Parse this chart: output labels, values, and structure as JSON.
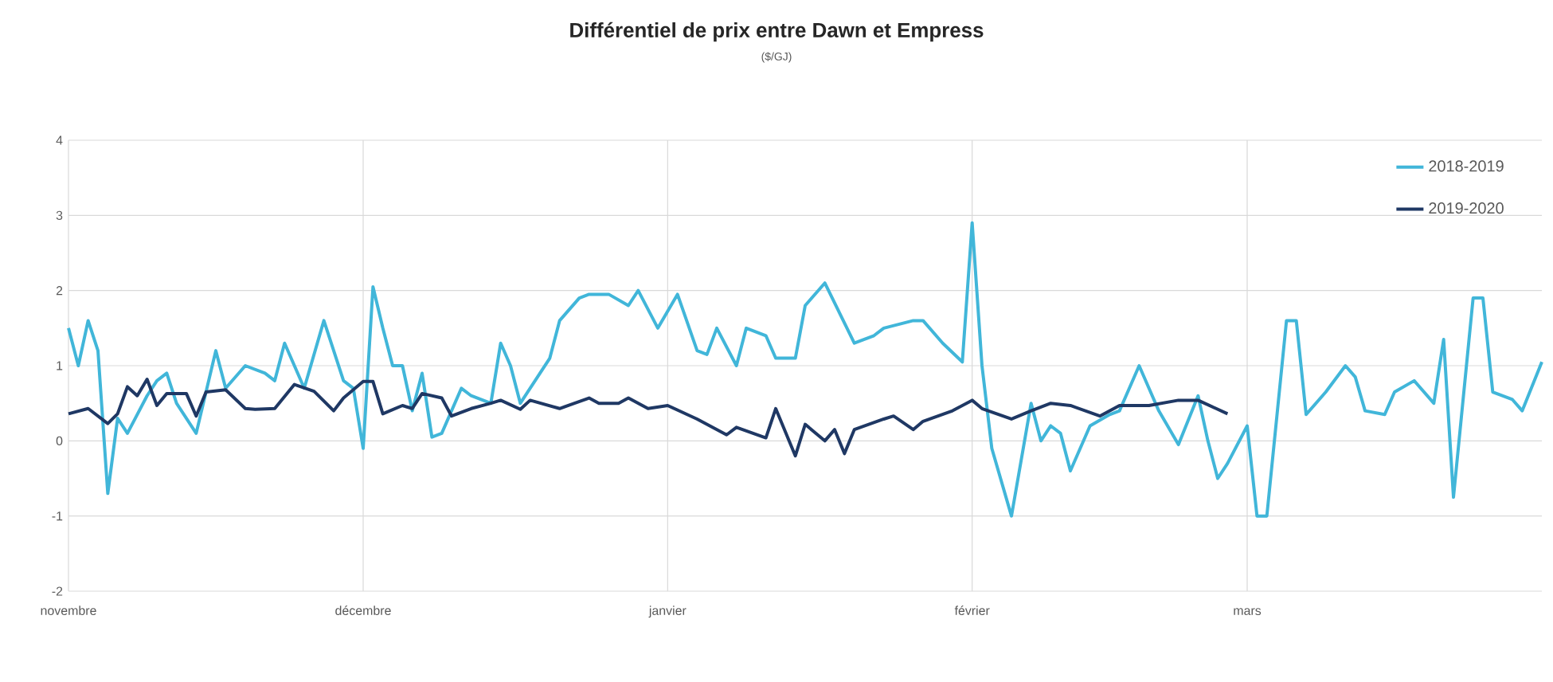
{
  "chart_data": {
    "type": "line",
    "title": "Différentiel de prix entre Dawn et Empress",
    "subtitle": "($/GJ)",
    "xlim": [
      "2018-11-01",
      "2019-03-31"
    ],
    "ylim": [
      -2,
      4
    ],
    "xticks": [
      {
        "value": "2018-11-01",
        "label": "novembre"
      },
      {
        "value": "2018-12-01",
        "label": "décembre"
      },
      {
        "value": "2019-01-01",
        "label": "janvier"
      },
      {
        "value": "2019-02-01",
        "label": "février"
      },
      {
        "value": "2019-03-01",
        "label": "mars"
      }
    ],
    "yticks": [
      -2,
      -1,
      0,
      1,
      2,
      3,
      4
    ],
    "grid": true,
    "legend": "top right",
    "marker": "none",
    "line_style": "solid",
    "series": [
      {
        "name": "2018-2019",
        "color": "#41b6d9",
        "x": [
          "2018-11-01",
          "2018-11-02",
          "2018-11-03",
          "2018-11-04",
          "2018-11-05",
          "2018-11-06",
          "2018-11-07",
          "2018-11-09",
          "2018-11-10",
          "2018-11-11",
          "2018-11-12",
          "2018-11-14",
          "2018-11-16",
          "2018-11-17",
          "2018-11-19",
          "2018-11-21",
          "2018-11-22",
          "2018-11-23",
          "2018-11-25",
          "2018-11-27",
          "2018-11-29",
          "2018-11-30",
          "2018-12-01",
          "2018-12-02",
          "2018-12-03",
          "2018-12-04",
          "2018-12-05",
          "2018-12-06",
          "2018-12-07",
          "2018-12-08",
          "2018-12-09",
          "2018-12-11",
          "2018-12-12",
          "2018-12-14",
          "2018-12-15",
          "2018-12-16",
          "2018-12-17",
          "2018-12-20",
          "2018-12-21",
          "2018-12-23",
          "2018-12-24",
          "2018-12-26",
          "2018-12-28",
          "2018-12-29",
          "2018-12-31",
          "2019-01-02",
          "2019-01-04",
          "2019-01-05",
          "2019-01-06",
          "2019-01-08",
          "2019-01-09",
          "2019-01-11",
          "2019-01-12",
          "2019-01-14",
          "2019-01-15",
          "2019-01-17",
          "2019-01-20",
          "2019-01-22",
          "2019-01-23",
          "2019-01-26",
          "2019-01-27",
          "2019-01-29",
          "2019-01-31",
          "2019-02-01",
          "2019-02-02",
          "2019-02-03",
          "2019-02-05",
          "2019-02-07",
          "2019-02-08",
          "2019-02-09",
          "2019-02-10",
          "2019-02-11",
          "2019-02-13",
          "2019-02-15",
          "2019-02-16",
          "2019-02-18",
          "2019-02-20",
          "2019-02-22",
          "2019-02-24",
          "2019-02-25",
          "2019-02-26",
          "2019-02-27",
          "2019-03-01",
          "2019-03-02",
          "2019-03-03",
          "2019-03-05",
          "2019-03-06",
          "2019-03-07",
          "2019-03-09",
          "2019-03-11",
          "2019-03-12",
          "2019-03-13",
          "2019-03-15",
          "2019-03-16",
          "2019-03-18",
          "2019-03-20",
          "2019-03-21",
          "2019-03-22",
          "2019-03-24",
          "2019-03-25",
          "2019-03-26",
          "2019-03-28",
          "2019-03-29",
          "2019-03-31"
        ],
        "values": [
          1.5,
          1.0,
          1.6,
          1.2,
          -0.7,
          0.3,
          0.1,
          0.6,
          0.8,
          0.9,
          0.5,
          0.1,
          1.2,
          0.7,
          1.0,
          0.9,
          0.8,
          1.3,
          0.7,
          1.6,
          0.8,
          0.7,
          -0.1,
          2.05,
          1.5,
          1.0,
          1.0,
          0.4,
          0.9,
          0.05,
          0.1,
          0.7,
          0.6,
          0.5,
          1.3,
          1.0,
          0.5,
          1.1,
          1.6,
          1.9,
          1.95,
          1.95,
          1.8,
          2.0,
          1.5,
          1.95,
          1.2,
          1.15,
          1.5,
          1.0,
          1.5,
          1.4,
          1.1,
          1.1,
          1.8,
          2.1,
          1.3,
          1.4,
          1.5,
          1.6,
          1.6,
          1.3,
          1.05,
          2.9,
          1.0,
          -0.1,
          -1.0,
          0.5,
          0.0,
          0.2,
          0.1,
          -0.4,
          0.2,
          0.35,
          0.4,
          1.0,
          0.4,
          -0.05,
          0.6,
          0.0,
          -0.5,
          -0.3,
          0.2,
          -1.0,
          -1.0,
          1.6,
          1.6,
          0.35,
          0.65,
          1.0,
          0.85,
          0.4,
          0.35,
          0.65,
          0.8,
          0.5,
          1.35,
          -0.75,
          1.9,
          1.9,
          0.65,
          0.55,
          0.4,
          1.05
        ]
      },
      {
        "name": "2019-2020",
        "color": "#1f3864",
        "x": [
          "2018-11-01",
          "2018-11-03",
          "2018-11-05",
          "2018-11-06",
          "2018-11-07",
          "2018-11-08",
          "2018-11-09",
          "2018-11-10",
          "2018-11-11",
          "2018-11-13",
          "2018-11-14",
          "2018-11-15",
          "2018-11-17",
          "2018-11-19",
          "2018-11-20",
          "2018-11-22",
          "2018-11-24",
          "2018-11-26",
          "2018-11-28",
          "2018-11-29",
          "2018-12-01",
          "2018-12-02",
          "2018-12-03",
          "2018-12-05",
          "2018-12-06",
          "2018-12-07",
          "2018-12-09",
          "2018-12-10",
          "2018-12-12",
          "2018-12-14",
          "2018-12-15",
          "2018-12-17",
          "2018-12-18",
          "2018-12-21",
          "2018-12-24",
          "2018-12-25",
          "2018-12-27",
          "2018-12-28",
          "2018-12-30",
          "2019-01-01",
          "2019-01-04",
          "2019-01-07",
          "2019-01-08",
          "2019-01-11",
          "2019-01-12",
          "2019-01-14",
          "2019-01-15",
          "2019-01-17",
          "2019-01-18",
          "2019-01-19",
          "2019-01-20",
          "2019-01-23",
          "2019-01-24",
          "2019-01-26",
          "2019-01-27",
          "2019-01-30",
          "2019-02-01",
          "2019-02-02",
          "2019-02-05",
          "2019-02-07",
          "2019-02-09",
          "2019-02-11",
          "2019-02-14",
          "2019-02-16",
          "2019-02-19",
          "2019-02-22",
          "2019-02-24",
          "2019-02-27"
        ],
        "values": [
          0.36,
          0.43,
          0.23,
          0.36,
          0.72,
          0.6,
          0.82,
          0.47,
          0.63,
          0.63,
          0.33,
          0.65,
          0.68,
          0.43,
          0.42,
          0.43,
          0.75,
          0.66,
          0.4,
          0.57,
          0.79,
          0.79,
          0.36,
          0.47,
          0.43,
          0.63,
          0.57,
          0.33,
          0.43,
          0.5,
          0.54,
          0.42,
          0.54,
          0.43,
          0.57,
          0.5,
          0.5,
          0.57,
          0.43,
          0.47,
          0.29,
          0.08,
          0.18,
          0.04,
          0.43,
          -0.2,
          0.22,
          0.0,
          0.15,
          -0.17,
          0.15,
          0.29,
          0.33,
          0.15,
          0.26,
          0.4,
          0.54,
          0.43,
          0.29,
          0.4,
          0.5,
          0.47,
          0.33,
          0.47,
          0.47,
          0.54,
          0.54,
          0.36
        ]
      }
    ]
  }
}
